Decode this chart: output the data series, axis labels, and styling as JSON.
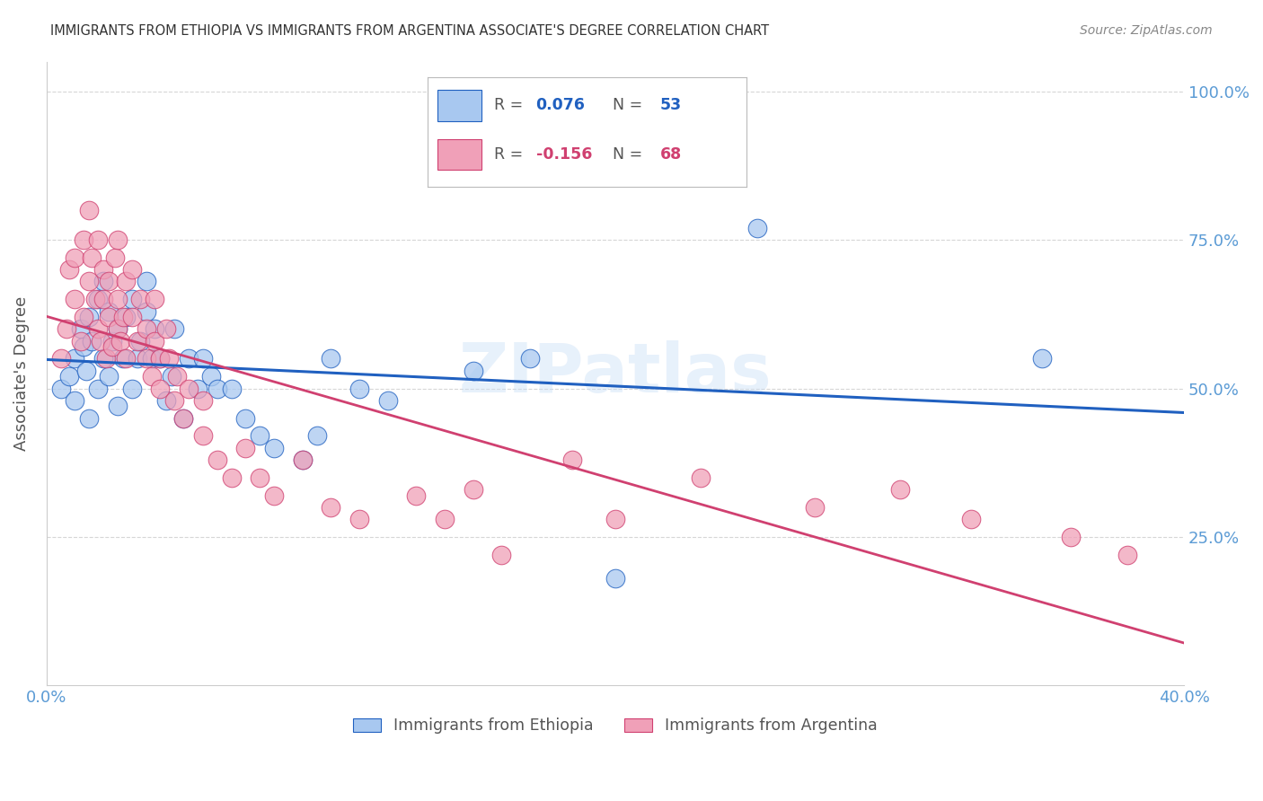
{
  "title": "IMMIGRANTS FROM ETHIOPIA VS IMMIGRANTS FROM ARGENTINA ASSOCIATE'S DEGREE CORRELATION CHART",
  "source": "Source: ZipAtlas.com",
  "ylabel": "Associate's Degree",
  "ytick_values": [
    0.25,
    0.5,
    0.75,
    1.0
  ],
  "ytick_labels": [
    "25.0%",
    "50.0%",
    "75.0%",
    "100.0%"
  ],
  "xmin": 0.0,
  "xmax": 0.4,
  "ymin": 0.0,
  "ymax": 1.05,
  "watermark": "ZIPatlas",
  "legend_ethiopia_r": "0.076",
  "legend_ethiopia_n": "53",
  "legend_argentina_r": "-0.156",
  "legend_argentina_n": "68",
  "color_ethiopia": "#A8C8F0",
  "color_argentina": "#F0A0B8",
  "color_trend_ethiopia": "#2060C0",
  "color_trend_argentina": "#D04070",
  "background_color": "#FFFFFF",
  "grid_color": "#CCCCCC",
  "axis_label_color": "#5B9BD5",
  "title_fontsize": 11,
  "ethiopia_x": [
    0.005,
    0.008,
    0.01,
    0.01,
    0.012,
    0.013,
    0.014,
    0.015,
    0.015,
    0.016,
    0.018,
    0.018,
    0.02,
    0.02,
    0.022,
    0.022,
    0.023,
    0.025,
    0.025,
    0.027,
    0.028,
    0.03,
    0.03,
    0.032,
    0.033,
    0.035,
    0.035,
    0.037,
    0.038,
    0.04,
    0.042,
    0.044,
    0.045,
    0.048,
    0.05,
    0.053,
    0.055,
    0.058,
    0.06,
    0.065,
    0.07,
    0.075,
    0.08,
    0.09,
    0.095,
    0.1,
    0.11,
    0.12,
    0.15,
    0.17,
    0.2,
    0.25,
    0.35
  ],
  "ethiopia_y": [
    0.5,
    0.52,
    0.55,
    0.48,
    0.6,
    0.57,
    0.53,
    0.62,
    0.45,
    0.58,
    0.65,
    0.5,
    0.55,
    0.68,
    0.52,
    0.63,
    0.58,
    0.6,
    0.47,
    0.55,
    0.62,
    0.5,
    0.65,
    0.55,
    0.58,
    0.63,
    0.68,
    0.55,
    0.6,
    0.55,
    0.48,
    0.52,
    0.6,
    0.45,
    0.55,
    0.5,
    0.55,
    0.52,
    0.5,
    0.5,
    0.45,
    0.42,
    0.4,
    0.38,
    0.42,
    0.55,
    0.5,
    0.48,
    0.53,
    0.55,
    0.18,
    0.77,
    0.55
  ],
  "argentina_x": [
    0.005,
    0.007,
    0.008,
    0.01,
    0.01,
    0.012,
    0.013,
    0.013,
    0.015,
    0.015,
    0.016,
    0.017,
    0.018,
    0.018,
    0.019,
    0.02,
    0.02,
    0.021,
    0.022,
    0.022,
    0.023,
    0.024,
    0.025,
    0.025,
    0.025,
    0.026,
    0.027,
    0.028,
    0.028,
    0.03,
    0.03,
    0.032,
    0.033,
    0.035,
    0.035,
    0.037,
    0.038,
    0.038,
    0.04,
    0.04,
    0.042,
    0.043,
    0.045,
    0.046,
    0.048,
    0.05,
    0.055,
    0.055,
    0.06,
    0.065,
    0.07,
    0.075,
    0.08,
    0.09,
    0.1,
    0.11,
    0.13,
    0.14,
    0.15,
    0.16,
    0.185,
    0.2,
    0.23,
    0.27,
    0.3,
    0.325,
    0.36,
    0.38
  ],
  "argentina_y": [
    0.55,
    0.6,
    0.7,
    0.65,
    0.72,
    0.58,
    0.75,
    0.62,
    0.68,
    0.8,
    0.72,
    0.65,
    0.6,
    0.75,
    0.58,
    0.65,
    0.7,
    0.55,
    0.62,
    0.68,
    0.57,
    0.72,
    0.6,
    0.65,
    0.75,
    0.58,
    0.62,
    0.55,
    0.68,
    0.62,
    0.7,
    0.58,
    0.65,
    0.55,
    0.6,
    0.52,
    0.58,
    0.65,
    0.55,
    0.5,
    0.6,
    0.55,
    0.48,
    0.52,
    0.45,
    0.5,
    0.42,
    0.48,
    0.38,
    0.35,
    0.4,
    0.35,
    0.32,
    0.38,
    0.3,
    0.28,
    0.32,
    0.28,
    0.33,
    0.22,
    0.38,
    0.28,
    0.35,
    0.3,
    0.33,
    0.28,
    0.25,
    0.22
  ]
}
